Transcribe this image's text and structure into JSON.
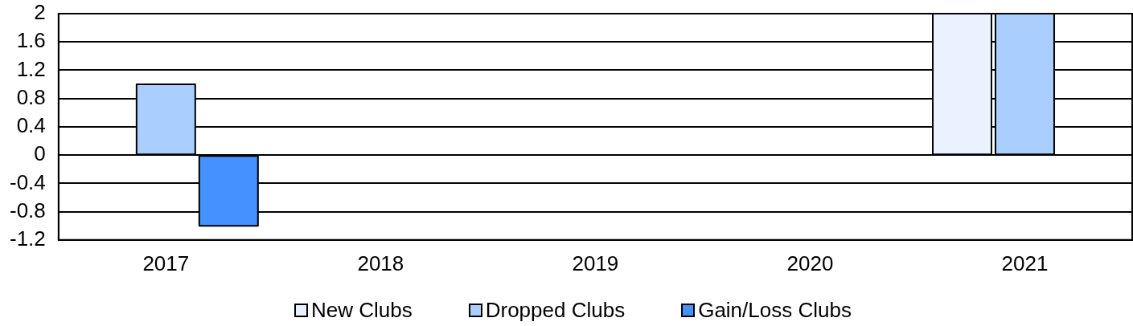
{
  "chart_data": {
    "type": "bar",
    "categories": [
      "2017",
      "2018",
      "2019",
      "2020",
      "2021"
    ],
    "series": [
      {
        "name": "New Clubs",
        "color": "#eaf2ff",
        "values": [
          0,
          0,
          0,
          0,
          2
        ]
      },
      {
        "name": "Dropped Clubs",
        "color": "#aacfff",
        "values": [
          1,
          0,
          0,
          0,
          2
        ]
      },
      {
        "name": "Gain/Loss Clubs",
        "color": "#4592ff",
        "values": [
          -1,
          0,
          0,
          0,
          0
        ]
      }
    ],
    "ylim": [
      -1.2,
      2
    ],
    "yticks": [
      -1.2,
      -0.8,
      -0.4,
      0,
      0.4,
      0.8,
      1.2,
      1.6,
      2
    ],
    "grid": "y",
    "legend": "bottom"
  }
}
